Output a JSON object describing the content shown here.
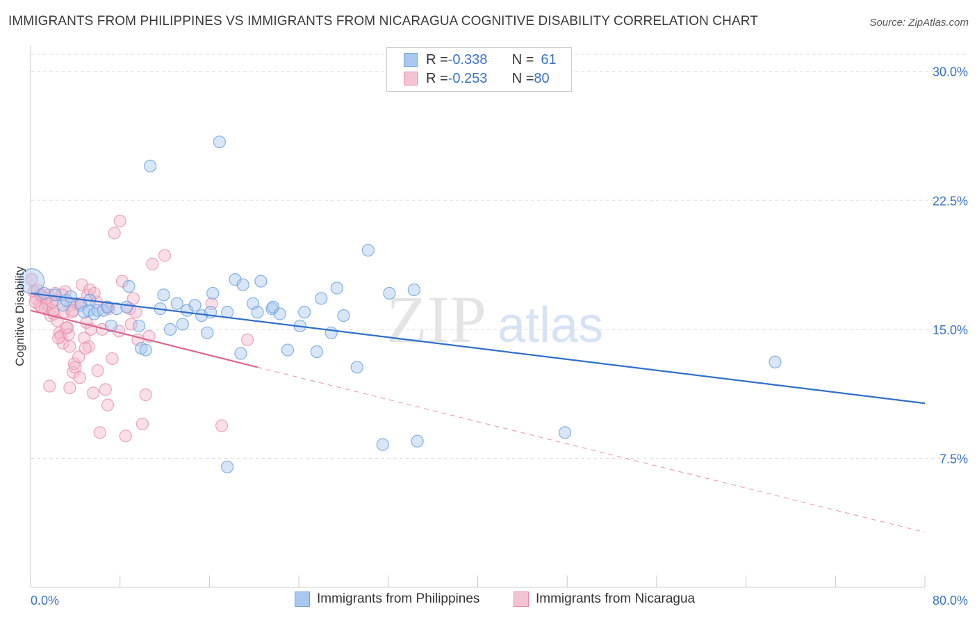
{
  "title": "IMMIGRANTS FROM PHILIPPINES VS IMMIGRANTS FROM NICARAGUA COGNITIVE DISABILITY CORRELATION CHART",
  "source": "Source: ZipAtlas.com",
  "watermark": {
    "zip": "ZIP",
    "atlas": "atlas"
  },
  "colors": {
    "blue": "#6fa3e0",
    "blue_fill": "#a9c8ef",
    "blue_line": "#2f6fcc",
    "pink": "#e68aa8",
    "pink_fill": "#f4b8cb",
    "pink_line": "#e0648e",
    "grid": "#dddddd",
    "tick_label": "#3a72c8"
  },
  "legend": {
    "rows": [
      {
        "r_label": "R = ",
        "r_value": "-0.338",
        "n_label": "N = ",
        "n_value": "61"
      },
      {
        "r_label": "R = ",
        "r_value": "-0.253",
        "n_label": "N = ",
        "n_value": "80"
      }
    ]
  },
  "bottom_legend": [
    "Immigrants from Philippines",
    "Immigrants from Nicaragua"
  ],
  "chart_data": {
    "type": "scatter",
    "title": "IMMIGRANTS FROM PHILIPPINES VS IMMIGRANTS FROM NICARAGUA COGNITIVE DISABILITY CORRELATION CHART",
    "xlabel": "",
    "ylabel": "Cognitive Disability",
    "xlim": [
      0,
      80
    ],
    "ylim": [
      0,
      31
    ],
    "x_tick_labels": [
      "0.0%",
      "80.0%"
    ],
    "y_ticks": [
      7.5,
      15.0,
      22.5,
      30.0
    ],
    "y_tick_labels": [
      "7.5%",
      "15.0%",
      "22.5%",
      "30.0%"
    ],
    "grid": true,
    "legend_position": "top-center",
    "series": [
      {
        "name": "Immigrants from Philippines",
        "color": "#6fa3e0",
        "points": [
          [
            0.1,
            17.8
          ],
          [
            1.2,
            17.1
          ],
          [
            2.2,
            17.0
          ],
          [
            2.9,
            16.4
          ],
          [
            3.2,
            16.7
          ],
          [
            3.6,
            16.9
          ],
          [
            4.5,
            16.4
          ],
          [
            4.8,
            16.0
          ],
          [
            5.2,
            16.1
          ],
          [
            5.7,
            15.9
          ],
          [
            6.0,
            16.1
          ],
          [
            6.5,
            16.1
          ],
          [
            6.9,
            16.3
          ],
          [
            7.2,
            15.2
          ],
          [
            7.7,
            16.2
          ],
          [
            8.6,
            16.3
          ],
          [
            8.8,
            17.5
          ],
          [
            9.7,
            15.2
          ],
          [
            9.9,
            13.9
          ],
          [
            10.3,
            13.8
          ],
          [
            10.7,
            24.5
          ],
          [
            11.6,
            16.2
          ],
          [
            11.9,
            17.0
          ],
          [
            12.5,
            15.0
          ],
          [
            13.1,
            16.5
          ],
          [
            13.6,
            15.3
          ],
          [
            14.0,
            16.1
          ],
          [
            14.7,
            16.4
          ],
          [
            15.3,
            15.8
          ],
          [
            15.8,
            14.8
          ],
          [
            16.1,
            16.0
          ],
          [
            16.3,
            17.1
          ],
          [
            16.9,
            25.9
          ],
          [
            17.6,
            16.0
          ],
          [
            18.3,
            17.9
          ],
          [
            18.8,
            13.6
          ],
          [
            19.0,
            17.6
          ],
          [
            19.9,
            16.5
          ],
          [
            20.3,
            16.0
          ],
          [
            20.6,
            17.8
          ],
          [
            21.6,
            16.2
          ],
          [
            21.7,
            16.3
          ],
          [
            22.3,
            15.9
          ],
          [
            23.0,
            13.8
          ],
          [
            24.1,
            15.2
          ],
          [
            24.5,
            16.0
          ],
          [
            25.6,
            13.7
          ],
          [
            26.0,
            16.8
          ],
          [
            26.9,
            14.8
          ],
          [
            27.4,
            17.4
          ],
          [
            28.0,
            15.8
          ],
          [
            29.2,
            12.8
          ],
          [
            30.2,
            19.6
          ],
          [
            31.5,
            8.3
          ],
          [
            32.1,
            17.1
          ],
          [
            34.6,
            8.5
          ],
          [
            34.3,
            17.3
          ],
          [
            47.8,
            9.0
          ],
          [
            17.6,
            7.0
          ],
          [
            66.6,
            13.1
          ],
          [
            5.3,
            16.7
          ]
        ],
        "trend": {
          "x": [
            0,
            80
          ],
          "y": [
            17.1,
            10.7
          ]
        }
      },
      {
        "name": "Immigrants from Nicaragua",
        "color": "#e68aa8",
        "points": [
          [
            0.1,
            17.9
          ],
          [
            0.3,
            17.2
          ],
          [
            0.5,
            16.8
          ],
          [
            0.8,
            16.4
          ],
          [
            1.1,
            16.9
          ],
          [
            1.3,
            16.2
          ],
          [
            1.5,
            16.5
          ],
          [
            1.6,
            17.0
          ],
          [
            1.8,
            15.8
          ],
          [
            2.0,
            16.1
          ],
          [
            2.1,
            15.9
          ],
          [
            2.3,
            16.7
          ],
          [
            2.4,
            15.5
          ],
          [
            2.6,
            14.8
          ],
          [
            2.7,
            14.6
          ],
          [
            2.9,
            14.2
          ],
          [
            3.0,
            16.0
          ],
          [
            3.1,
            17.2
          ],
          [
            3.3,
            15.1
          ],
          [
            3.4,
            14.7
          ],
          [
            3.5,
            14.0
          ],
          [
            3.6,
            16.4
          ],
          [
            3.7,
            16.0
          ],
          [
            3.8,
            12.5
          ],
          [
            3.9,
            13.0
          ],
          [
            4.0,
            12.8
          ],
          [
            4.2,
            16.5
          ],
          [
            4.3,
            13.4
          ],
          [
            4.4,
            12.2
          ],
          [
            4.6,
            17.6
          ],
          [
            4.8,
            14.5
          ],
          [
            5.0,
            15.4
          ],
          [
            5.1,
            17.0
          ],
          [
            5.2,
            14.0
          ],
          [
            5.3,
            17.3
          ],
          [
            5.4,
            15.0
          ],
          [
            5.6,
            11.3
          ],
          [
            5.9,
            16.6
          ],
          [
            6.0,
            12.6
          ],
          [
            6.2,
            9.0
          ],
          [
            6.4,
            15.0
          ],
          [
            6.7,
            11.5
          ],
          [
            6.9,
            10.6
          ],
          [
            7.0,
            16.2
          ],
          [
            7.3,
            13.3
          ],
          [
            7.5,
            20.6
          ],
          [
            8.0,
            21.3
          ],
          [
            8.2,
            17.8
          ],
          [
            8.5,
            8.8
          ],
          [
            8.9,
            16.2
          ],
          [
            9.0,
            15.3
          ],
          [
            9.2,
            16.8
          ],
          [
            9.6,
            14.4
          ],
          [
            10.0,
            9.5
          ],
          [
            10.3,
            11.2
          ],
          [
            10.6,
            14.6
          ],
          [
            10.9,
            18.8
          ],
          [
            12.0,
            19.3
          ],
          [
            16.2,
            16.5
          ],
          [
            17.1,
            9.4
          ],
          [
            19.4,
            14.4
          ],
          [
            1.7,
            11.7
          ],
          [
            3.5,
            11.6
          ],
          [
            2.2,
            17.1
          ],
          [
            1.0,
            16.3
          ],
          [
            0.6,
            17.3
          ],
          [
            1.9,
            16.6
          ],
          [
            2.8,
            17.0
          ],
          [
            3.2,
            15.1
          ],
          [
            4.5,
            16.5
          ],
          [
            5.7,
            17.1
          ],
          [
            6.8,
            16.3
          ],
          [
            0.4,
            16.6
          ],
          [
            1.4,
            16.8
          ],
          [
            2.5,
            14.5
          ],
          [
            3.8,
            16.1
          ],
          [
            4.9,
            13.9
          ],
          [
            7.9,
            14.9
          ],
          [
            9.4,
            16.0
          ],
          [
            0.9,
            17.0
          ]
        ],
        "trend_solid": {
          "x": [
            0,
            20.3
          ],
          "y": [
            16.1,
            12.8
          ]
        },
        "trend_dashed": {
          "x": [
            20.3,
            80
          ],
          "y": [
            12.8,
            3.2
          ]
        }
      }
    ]
  }
}
